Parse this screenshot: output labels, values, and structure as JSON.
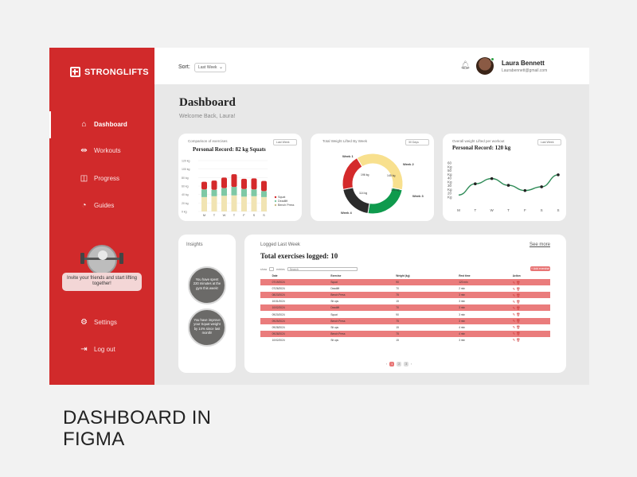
{
  "brand": {
    "name": "STRONGLIFTS",
    "primary": "#d12a2b"
  },
  "nav": [
    {
      "label": "Dashboard",
      "icon": "home-icon",
      "active": true
    },
    {
      "label": "Workouts",
      "icon": "dumbbell-icon",
      "active": false
    },
    {
      "label": "Progress",
      "icon": "chart-icon",
      "active": false
    },
    {
      "label": "Guides",
      "icon": "guides-icon",
      "active": false
    }
  ],
  "nav_bottom": [
    {
      "label": "Settings",
      "icon": "gear-icon"
    },
    {
      "label": "Log out",
      "icon": "logout-icon"
    }
  ],
  "invite": {
    "text": "Invite your friends and start lifting together!"
  },
  "topbar": {
    "sort_label": "Sort:",
    "sort_value": "Last Week",
    "user_name": "Laura Bennett",
    "user_email": "Laurabennett@gmail.com"
  },
  "header": {
    "title": "Dashboard",
    "welcome": "Welcome Back, Laura!"
  },
  "card1": {
    "subtitle": "Comparison of exercises",
    "title": "Personal Record: 82 kg Squats",
    "filter": "Last Week"
  },
  "card2": {
    "subtitle": "Total Weight Lifted By Week",
    "filter": "30 Days"
  },
  "card3": {
    "subtitle": "Overall weight Lifted per workout",
    "title": "Personal Record: 120 kg",
    "filter": "Last Week"
  },
  "chart_data": [
    {
      "type": "bar",
      "categories": [
        "M",
        "T",
        "W",
        "T",
        "F",
        "S",
        "S"
      ],
      "ylim": [
        0,
        120
      ],
      "yticks": [
        "120 kg",
        "100 kg",
        "80 kg",
        "60 kg",
        "40 kg",
        "20 kg",
        "0 kg"
      ],
      "series": [
        {
          "name": "Squat",
          "color": "#d42a2b",
          "values": [
            18,
            22,
            25,
            30,
            24,
            26,
            24
          ]
        },
        {
          "name": "Deadlift",
          "color": "#7ec8a5",
          "values": [
            18,
            15,
            18,
            20,
            18,
            16,
            14
          ]
        },
        {
          "name": "Bench Press",
          "color": "#f1e4b3",
          "values": [
            34,
            36,
            37,
            38,
            35,
            36,
            34
          ]
        }
      ]
    },
    {
      "type": "pie",
      "labels": [
        "Week 1",
        "Week 2",
        "Week 3",
        "Week 4"
      ],
      "values": [
        46,
        30,
        24,
        24
      ],
      "value_labels": [
        "196 kg",
        "145 kg",
        "120 kg",
        "114 kg"
      ],
      "colors": [
        "#f8e08e",
        "#0f9a4d",
        "#2b2b2b",
        "#d42a2b"
      ]
    },
    {
      "type": "line",
      "categories": [
        "M",
        "T",
        "W",
        "T",
        "F",
        "S",
        "S"
      ],
      "yticks": [
        "60 Kg",
        "50 Kg",
        "40 Kg",
        "30 Kg",
        "20 Kg"
      ],
      "ylim": [
        15,
        65
      ],
      "values": [
        20,
        35,
        42,
        33,
        26,
        31,
        47
      ]
    }
  ],
  "insights": {
    "title": "Insights",
    "items": [
      "You have spent 220 minutes at the gym this week!",
      "You have improve your Squat weight by 14% since last month!"
    ]
  },
  "log": {
    "subtitle": "Logged Last Week",
    "title": "Total exercises logged: 10",
    "see_more": "See more",
    "show_label": "show",
    "entries_label": "entries",
    "search_placeholder": "Search",
    "add_label": "+ Add exercise",
    "columns": [
      "",
      "Date",
      "Exercise",
      "Weight (kg)",
      "Rest time",
      "Action"
    ],
    "rows": [
      [
        "",
        "07/19/2024",
        "Squat",
        "90",
        "120 min"
      ],
      [
        "",
        "07/26/2024",
        "Deadlift",
        "70",
        "2 min"
      ],
      [
        "",
        "08/23/2024",
        "Bench Press",
        "75",
        "3 min"
      ],
      [
        "",
        "10/31/2024",
        "Sit ups",
        "15",
        "3 min"
      ],
      [
        "",
        "10/02/2024",
        "Deadlift",
        "70",
        "3 min"
      ],
      [
        "",
        "09/20/2024",
        "Squat",
        "90",
        "3 min"
      ],
      [
        "",
        "09/25/2024",
        "Bench Press",
        "75",
        "3 min"
      ],
      [
        "",
        "09/28/2024",
        "Sit ups",
        "15",
        "4 min"
      ],
      [
        "",
        "09/28/2024",
        "Bench Press",
        "75",
        "4 min"
      ],
      [
        "",
        "10/02/2024",
        "Sit ups",
        "15",
        "3 min"
      ]
    ],
    "pages": [
      "1",
      "2",
      "3"
    ]
  },
  "caption": "DASHBOARD IN FIGMA"
}
